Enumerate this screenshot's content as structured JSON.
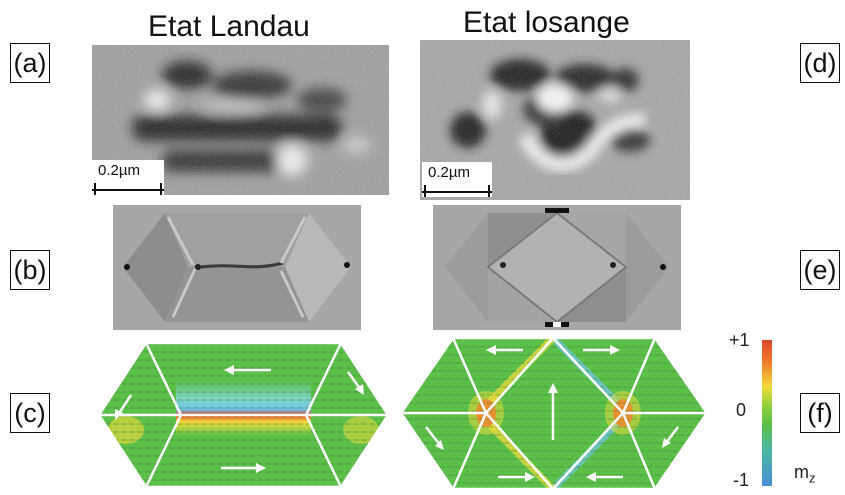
{
  "titles": {
    "left": "Etat Landau",
    "right": "Etat losange"
  },
  "panel_labels": {
    "a": "(a)",
    "b": "(b)",
    "c": "(c)",
    "d": "(d)",
    "e": "(e)",
    "f": "(f)"
  },
  "scale_bars": {
    "left": "0.2µm",
    "right": "0.2µm"
  },
  "colorbar": {
    "max": "+1",
    "mid": "0",
    "min": "-1",
    "quantity": "m",
    "quantity_sub": "z"
  },
  "colors": {
    "sim_green": "#5cbf4a",
    "stripe_red": "#d9472b",
    "stripe_yellow": "#f1dc3a",
    "stripe_blue": "#6fc3e6",
    "domain_wall": "#ffffff"
  }
}
